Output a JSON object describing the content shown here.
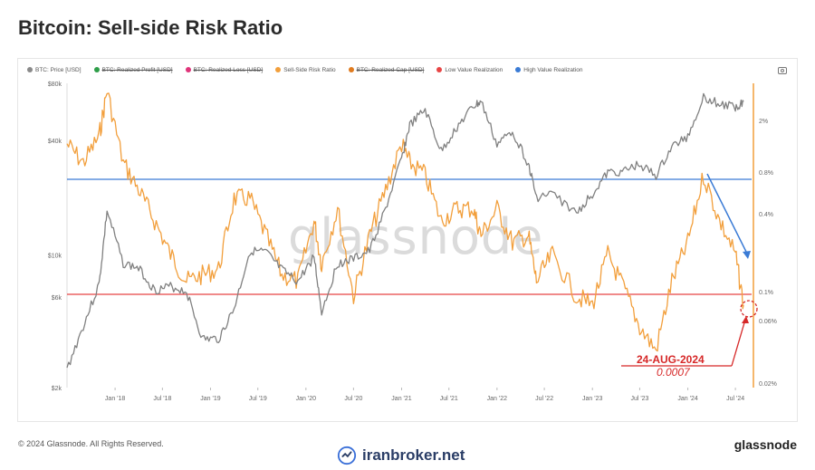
{
  "page": {
    "title": "Bitcoin: Sell-side Risk Ratio",
    "copyright": "© 2024 Glassnode. All Rights Reserved.",
    "brand_right": "glassnode",
    "brand_center": "iranbroker.net",
    "watermark": "glassnode"
  },
  "legend": [
    {
      "label": "BTC: Price [USD]",
      "color": "#8a8a8a",
      "active": true
    },
    {
      "label": "BTC: Realized Profit [USD]",
      "color": "#2e9e49",
      "active": false
    },
    {
      "label": "BTC: Realized Loss [USD]",
      "color": "#e0347a",
      "active": false
    },
    {
      "label": "Sell-Side Risk Ratio",
      "color": "#f29f3c",
      "active": true
    },
    {
      "label": "BTC: Realized Cap [USD]",
      "color": "#e07b1f",
      "active": false
    },
    {
      "label": "Low Value Realization",
      "color": "#e84545",
      "active": true
    },
    {
      "label": "High Value Realization",
      "color": "#3a7bd5",
      "active": true
    }
  ],
  "annotation": {
    "date": "24-AUG-2024",
    "value": "0.0007",
    "color": "#d62828"
  },
  "chart_data": {
    "type": "line",
    "xlabel": "",
    "ylabel": "",
    "x_ticks": [
      "Jan '18",
      "Jul '18",
      "Jan '19",
      "Jul '19",
      "Jan '20",
      "Jul '20",
      "Jan '21",
      "Jul '21",
      "Jan '22",
      "Jul '22",
      "Jan '23",
      "Jul '23",
      "Jan '24",
      "Jul '24"
    ],
    "y_left_ticks": [
      "$80k",
      "$40k",
      "$10k",
      "$6k",
      "$2k"
    ],
    "y_right_ticks": [
      "2%",
      "0.8%",
      "0.4%",
      "0.1%",
      "0.06%",
      "0.02%"
    ],
    "y_left_scale": "log",
    "y_right_scale": "log",
    "y_left_range": [
      2000,
      80000
    ],
    "y_right_range": [
      0.0002,
      0.02
    ],
    "thresholds": [
      {
        "name": "High Value Realization",
        "value": 0.006,
        "color": "#3a7bd5"
      },
      {
        "name": "Low Value Realization",
        "value": 0.001,
        "color": "#e84545"
      }
    ],
    "series": [
      {
        "name": "BTC: Price [USD]",
        "color": "#808080",
        "axis": "left",
        "x": [
          "2017-07",
          "2017-09",
          "2017-11",
          "2017-12",
          "2018-02",
          "2018-04",
          "2018-06",
          "2018-08",
          "2018-10",
          "2018-12",
          "2019-02",
          "2019-04",
          "2019-06",
          "2019-08",
          "2019-10",
          "2019-12",
          "2020-02",
          "2020-03",
          "2020-05",
          "2020-07",
          "2020-09",
          "2020-11",
          "2021-01",
          "2021-02",
          "2021-04",
          "2021-06",
          "2021-08",
          "2021-10",
          "2021-11",
          "2022-01",
          "2022-03",
          "2022-05",
          "2022-06",
          "2022-08",
          "2022-11",
          "2023-01",
          "2023-03",
          "2023-05",
          "2023-07",
          "2023-09",
          "2023-11",
          "2024-01",
          "2024-03",
          "2024-05",
          "2024-07",
          "2024-08"
        ],
        "values": [
          2500,
          4200,
          7000,
          17000,
          9000,
          8500,
          6500,
          6800,
          6400,
          3600,
          3600,
          5200,
          10500,
          10300,
          8300,
          7200,
          9800,
          5000,
          9000,
          9500,
          10500,
          17500,
          32000,
          48000,
          58000,
          35000,
          47000,
          60000,
          64000,
          38000,
          45000,
          30000,
          20000,
          21000,
          16500,
          21000,
          27000,
          27500,
          30000,
          26000,
          37000,
          42000,
          68000,
          62000,
          60000,
          64000
        ]
      },
      {
        "name": "Sell-Side Risk Ratio",
        "color": "#f29f3c",
        "axis": "right",
        "x": [
          "2017-07",
          "2017-09",
          "2017-11",
          "2017-12",
          "2018-02",
          "2018-04",
          "2018-06",
          "2018-08",
          "2018-10",
          "2018-12",
          "2019-02",
          "2019-04",
          "2019-06",
          "2019-08",
          "2019-10",
          "2019-12",
          "2020-02",
          "2020-03",
          "2020-05",
          "2020-07",
          "2020-09",
          "2020-11",
          "2021-01",
          "2021-02",
          "2021-04",
          "2021-06",
          "2021-08",
          "2021-10",
          "2021-11",
          "2022-01",
          "2022-03",
          "2022-05",
          "2022-06",
          "2022-08",
          "2022-11",
          "2023-01",
          "2023-03",
          "2023-05",
          "2023-07",
          "2023-09",
          "2023-11",
          "2024-01",
          "2024-03",
          "2024-05",
          "2024-07",
          "2024-08"
        ],
        "values": [
          0.008,
          0.006,
          0.009,
          0.018,
          0.006,
          0.004,
          0.0025,
          0.0015,
          0.001,
          0.0011,
          0.0012,
          0.0035,
          0.0035,
          0.002,
          0.0011,
          0.001,
          0.0025,
          0.0013,
          0.003,
          0.0008,
          0.002,
          0.004,
          0.008,
          0.006,
          0.005,
          0.0025,
          0.003,
          0.003,
          0.002,
          0.003,
          0.0018,
          0.002,
          0.001,
          0.0015,
          0.0008,
          0.0007,
          0.0015,
          0.0009,
          0.0005,
          0.00035,
          0.001,
          0.0018,
          0.005,
          0.0025,
          0.0015,
          0.0007
        ]
      }
    ]
  }
}
